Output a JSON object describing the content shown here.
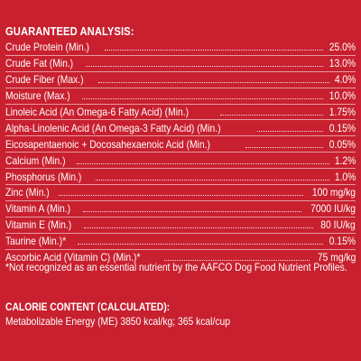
{
  "guaranteed_analysis": {
    "heading": "GUARANTEED ANALYSIS:",
    "rows": [
      {
        "label": "Crude Protein (Min.)",
        "value": "25.0%"
      },
      {
        "label": "Crude Fat (Min.)",
        "value": "13.0%"
      },
      {
        "label": "Crude Fiber (Max.)",
        "value": "4.0%"
      },
      {
        "label": "Moisture (Max.)",
        "value": "10.0%"
      },
      {
        "label": "Linoleic Acid (An Omega-6 Fatty Acid) (Min.)",
        "value": "1.75%"
      },
      {
        "label": "Alpha-Linolenic Acid (An Omega-3 Fatty Acid) (Min.)",
        "value": "0.15%"
      },
      {
        "label": "Eicosapentaenoic + Docosahexaenoic Acid (Min.)",
        "value": "0.05%"
      },
      {
        "label": "Calcium (Min.)",
        "value": "1.2%"
      },
      {
        "label": "Phosphorus (Min.)",
        "value": "1.0%"
      },
      {
        "label": "Zinc (Min.)",
        "value": "100 mg/kg"
      },
      {
        "label": "Vitamin A (Min.)",
        "value": "7000 IU/kg"
      },
      {
        "label": "Vitamin E (Min.)",
        "value": "80 IU/kg"
      },
      {
        "label": "Taurine (Min.)*",
        "value": "0.15%"
      },
      {
        "label": "Ascorbic Acid (Vitamin C) (Min.)*",
        "value": "75 mg/kg"
      }
    ],
    "footnote": "*Not recognized as an essential nutrient by the AAFCO Dog Food Nutrient Profiles."
  },
  "calorie_content": {
    "heading": "CALORIE CONTENT (CALCULATED):",
    "text": "Metabolizable Energy (ME) 3850 kcal/kg;  365 kcal/cup"
  },
  "colors": {
    "background": "#c8202f",
    "text": "#ffffff"
  }
}
